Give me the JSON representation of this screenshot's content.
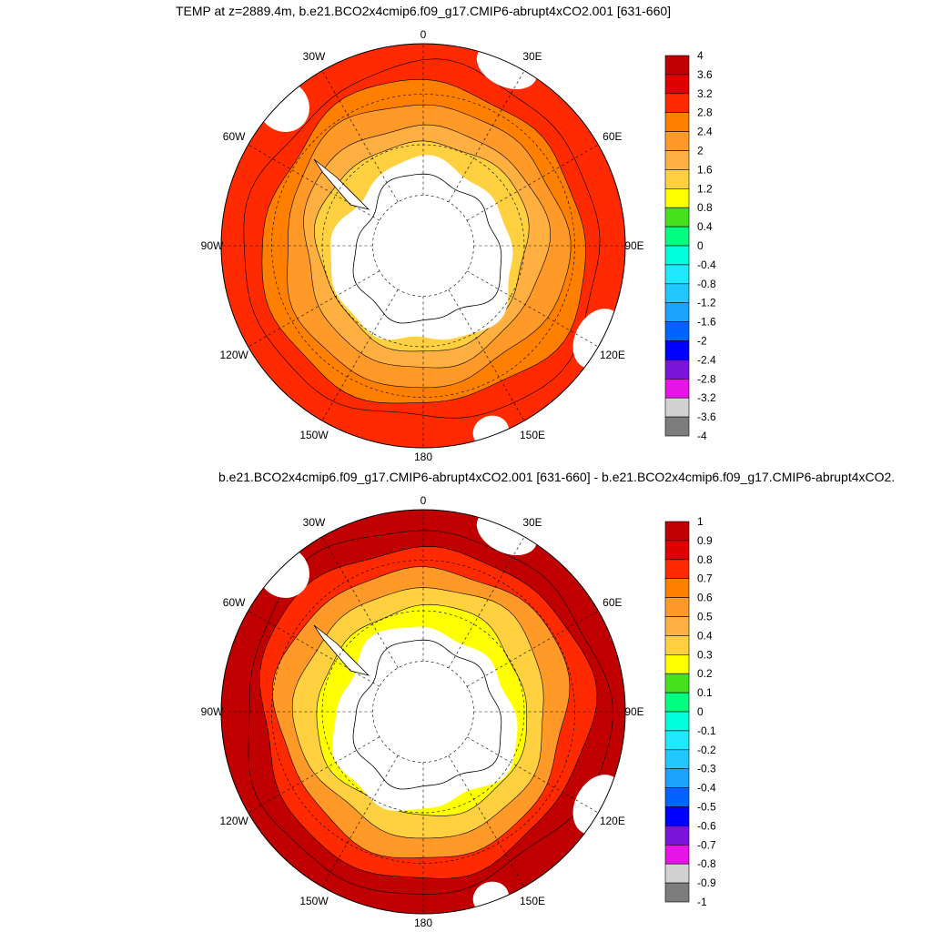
{
  "panels": [
    {
      "title": "TEMP at z=2889.4m, b.e21.BCO2x4cmip6.f09_g17.CMIP6-abrupt4xCO2.001 [631-660]",
      "lon_labels": [
        "0",
        "30E",
        "60E",
        "90E",
        "120E",
        "150E",
        "180",
        "150W",
        "120W",
        "90W",
        "60W",
        "30W"
      ],
      "colorbar": {
        "labels": [
          "4",
          "3.6",
          "3.2",
          "2.8",
          "2.4",
          "2",
          "1.6",
          "1.2",
          "0.8",
          "0.4",
          "0",
          "-0.4",
          "-0.8",
          "-1.2",
          "-1.6",
          "-2",
          "-2.4",
          "-2.8",
          "-3.2",
          "-3.6",
          "-4"
        ],
        "colors": [
          "#c00000",
          "#e00000",
          "#ff2a00",
          "#ff8000",
          "#ff9a28",
          "#ffb040",
          "#ffd040",
          "#ffff00",
          "#46e01e",
          "#00ff80",
          "#00ffdc",
          "#20e8ff",
          "#20c8ff",
          "#1aa4ff",
          "#0064ff",
          "#0000ff",
          "#7a14d8",
          "#e614e6",
          "#d2d2d2",
          "#7d7d7d"
        ]
      },
      "field": {
        "levels_from_south": [
          {
            "r": 0.52,
            "color": "#ffd040"
          },
          {
            "r": 0.6,
            "color": "#ffb040"
          },
          {
            "r": 0.7,
            "color": "#ff9a28"
          },
          {
            "r": 0.8,
            "color": "#ff8000"
          },
          {
            "r": 0.88,
            "color": "#ff2a00"
          },
          {
            "r": 1.0,
            "color": "#ff2a00"
          }
        ]
      }
    },
    {
      "title": "b.e21.BCO2x4cmip6.f09_g17.CMIP6-abrupt4xCO2.001 [631-660] - b.e21.BCO2x4cmip6.f09_g17.CMIP6-abrupt4xCO2.",
      "lon_labels": [
        "0",
        "30E",
        "60E",
        "90E",
        "120E",
        "150E",
        "180",
        "150W",
        "120W",
        "90W",
        "60W",
        "30W"
      ],
      "colorbar": {
        "labels": [
          "1",
          "0.9",
          "0.8",
          "0.7",
          "0.6",
          "0.5",
          "0.4",
          "0.3",
          "0.2",
          "0.1",
          "0",
          "-0.1",
          "-0.2",
          "-0.3",
          "-0.4",
          "-0.5",
          "-0.6",
          "-0.7",
          "-0.8",
          "-0.9",
          "-1"
        ],
        "colors": [
          "#c00000",
          "#e00000",
          "#ff2a00",
          "#ff8000",
          "#ff9a28",
          "#ffb040",
          "#ffd040",
          "#ffff00",
          "#46e01e",
          "#00ff80",
          "#00ffdc",
          "#20e8ff",
          "#20c8ff",
          "#1aa4ff",
          "#0064ff",
          "#0000ff",
          "#7a14d8",
          "#e614e6",
          "#d2d2d2",
          "#7d7d7d"
        ]
      },
      "field": {
        "levels_from_south": [
          {
            "r": 0.52,
            "color": "#ffff00"
          },
          {
            "r": 0.62,
            "color": "#ffd040"
          },
          {
            "r": 0.72,
            "color": "#ff9a28"
          },
          {
            "r": 0.82,
            "color": "#ff2a00"
          },
          {
            "r": 0.9,
            "color": "#c00000"
          },
          {
            "r": 1.0,
            "color": "#c00000"
          }
        ]
      }
    }
  ]
}
